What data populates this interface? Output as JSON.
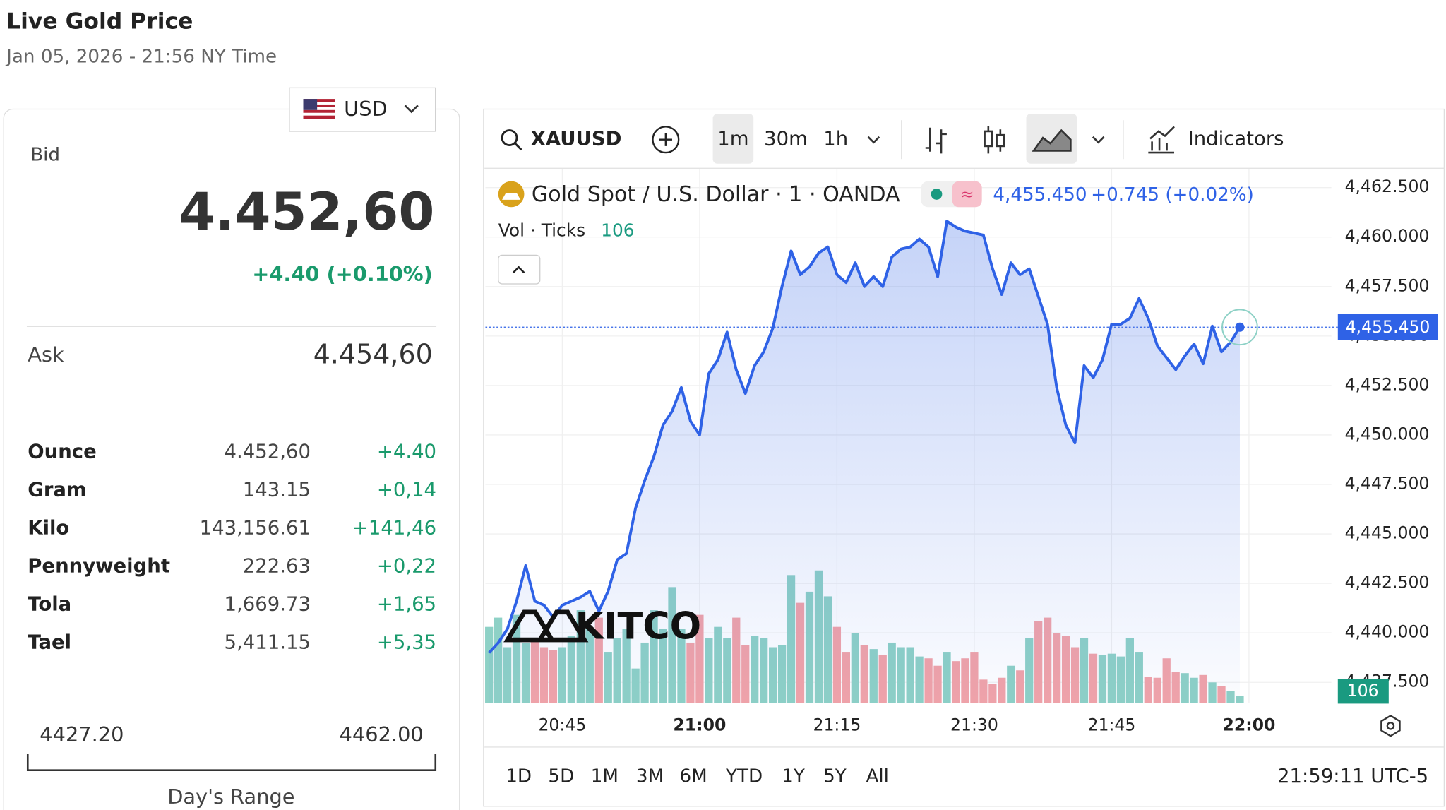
{
  "header": {
    "title": "Live Gold Price",
    "subtitle": "Jan 05, 2026 - 21:56 NY Time"
  },
  "currency": "USD",
  "quote": {
    "bid_label": "Bid",
    "bid": "4.452,60",
    "change": "+4.40 (+0.10%)",
    "ask_label": "Ask",
    "ask": "4.454,60"
  },
  "table": {
    "rows": [
      [
        "Ounce",
        "4.452,60",
        "+4.40"
      ],
      [
        "Gram",
        "143.15",
        "+0,14"
      ],
      [
        "Kilo",
        "143,156.61",
        "+141,46"
      ],
      [
        "Pennyweight",
        "222.63",
        "+0,22"
      ],
      [
        "Tola",
        "1,669.73",
        "+1,65"
      ],
      [
        "Tael",
        "5,411.15",
        "+5,35"
      ]
    ]
  },
  "range": {
    "low": "4427.20",
    "high": "4462.00",
    "label": "Day's Range"
  },
  "toolbar": {
    "symbol": "XAUUSD",
    "intervals": [
      "1m",
      "30m",
      "1h"
    ],
    "indicators": "Indicators"
  },
  "watermark": "KITCO",
  "periods": [
    "1D",
    "5D",
    "1M",
    "3M",
    "6M",
    "YTD",
    "1Y",
    "5Y",
    "All"
  ],
  "clock": "21:59:11 UTC-5",
  "chart_data": {
    "type": "area",
    "legend": {
      "last": "4,455.450",
      "change": "+0.745 (+0.02%)"
    },
    "last_label": "4,455.450",
    "x": [
      1237,
      1238,
      1239,
      1240,
      1241,
      1242,
      1243,
      1244,
      1245,
      1246,
      1247,
      1248,
      1249,
      1250,
      1251,
      1252,
      1253,
      1254,
      1255,
      1256,
      1257,
      1258,
      1259,
      1260,
      1261,
      1262,
      1263,
      1264,
      1265,
      1266,
      1267,
      1268,
      1269,
      1270,
      1271,
      1272,
      1273,
      1274,
      1275,
      1276,
      1277,
      1278,
      1279,
      1280,
      1281,
      1282,
      1283,
      1284,
      1285,
      1286,
      1287,
      1288,
      1289,
      1290,
      1291,
      1292,
      1293,
      1294,
      1295,
      1296,
      1297,
      1298,
      1299,
      1300,
      1301,
      1302,
      1303,
      1304,
      1305,
      1306,
      1307,
      1308,
      1309,
      1310,
      1311,
      1312,
      1313,
      1314,
      1315,
      1316,
      1317,
      1318,
      1319
    ],
    "series": [
      {
        "name": "Gold Spot / U.S. Dollar · 1 · OANDA",
        "color": "#2f62e6",
        "values": [
          4439.0,
          4439.5,
          4440.2,
          4441.6,
          4443.4,
          4441.6,
          4441.4,
          4440.8,
          4441.4,
          4441.6,
          4441.8,
          4442.1,
          4441.1,
          4442.1,
          4443.7,
          4444.0,
          4446.3,
          4447.7,
          4448.9,
          4450.5,
          4451.2,
          4452.4,
          4450.7,
          4450.0,
          4453.1,
          4453.8,
          4455.2,
          4453.3,
          4452.1,
          4453.5,
          4454.2,
          4455.4,
          4457.5,
          4459.3,
          4458.1,
          4458.5,
          4459.2,
          4459.5,
          4458.1,
          4457.7,
          4458.7,
          4457.5,
          4458.0,
          4457.5,
          4459.0,
          4459.4,
          4459.5,
          4459.9,
          4459.5,
          4458.0,
          4460.8,
          4460.5,
          4460.3,
          4460.2,
          4460.1,
          4458.4,
          4457.1,
          4458.7,
          4458.1,
          4458.4,
          4457.0,
          4455.6,
          4452.4,
          4450.5,
          4449.6,
          4453.5,
          4452.9,
          4453.8,
          4455.6,
          4455.6,
          4455.9,
          4456.9,
          4455.9,
          4454.5,
          4453.9,
          4453.3,
          4454.0,
          4454.6,
          4453.6,
          4455.5,
          4454.2,
          4454.7,
          4455.45
        ]
      }
    ],
    "volume": {
      "name": "Vol · Ticks",
      "up_color": "#8ed1c6",
      "down_color": "#f2a3a8",
      "ylim": [
        0,
        8650
      ],
      "values": [
        1230,
        1380,
        900,
        1425,
        975,
        1050,
        900,
        855,
        900,
        1080,
        1500,
        1200,
        1380,
        825,
        1050,
        1200,
        555,
        975,
        1500,
        1200,
        1875,
        1200,
        975,
        1425,
        1050,
        1230,
        1050,
        1380,
        930,
        1080,
        1050,
        900,
        930,
        2070,
        1620,
        1800,
        2145,
        1725,
        1230,
        825,
        1125,
        930,
        870,
        780,
        975,
        900,
        900,
        750,
        720,
        600,
        825,
        675,
        720,
        825,
        375,
        300,
        405,
        600,
        525,
        1050,
        1320,
        1380,
        1125,
        1080,
        900,
        1050,
        795,
        780,
        795,
        750,
        1050,
        825,
        420,
        405,
        720,
        495,
        480,
        405,
        450,
        330,
        270,
        195,
        106
      ]
    },
    "xlim": [
      1236.6,
      1329
    ],
    "xticks": [
      {
        "value": 1245,
        "label": "20:45"
      },
      {
        "value": 1260,
        "label": "21:00"
      },
      {
        "value": 1275,
        "label": "21:15"
      },
      {
        "value": 1290,
        "label": "21:30"
      },
      {
        "value": 1305,
        "label": "21:45"
      },
      {
        "value": 1320,
        "label": "22:00"
      }
    ],
    "ylim": [
      4436.47,
      4463.43
    ],
    "yticks": [
      {
        "value": 4437.5,
        "label": "4,437.500"
      },
      {
        "value": 4440,
        "label": "4,440.000"
      },
      {
        "value": 4442.5,
        "label": "4,442.500"
      },
      {
        "value": 4445,
        "label": "4,445.000"
      },
      {
        "value": 4447.5,
        "label": "4,447.500"
      },
      {
        "value": 4450,
        "label": "4,450.000"
      },
      {
        "value": 4452.5,
        "label": "4,452.500"
      },
      {
        "value": 4455,
        "label": "4,455.000"
      },
      {
        "value": 4457.5,
        "label": "4,457.500"
      },
      {
        "value": 4460,
        "label": "4,460.000"
      },
      {
        "value": 4462.5,
        "label": "4,462.500"
      }
    ],
    "grid": true
  }
}
